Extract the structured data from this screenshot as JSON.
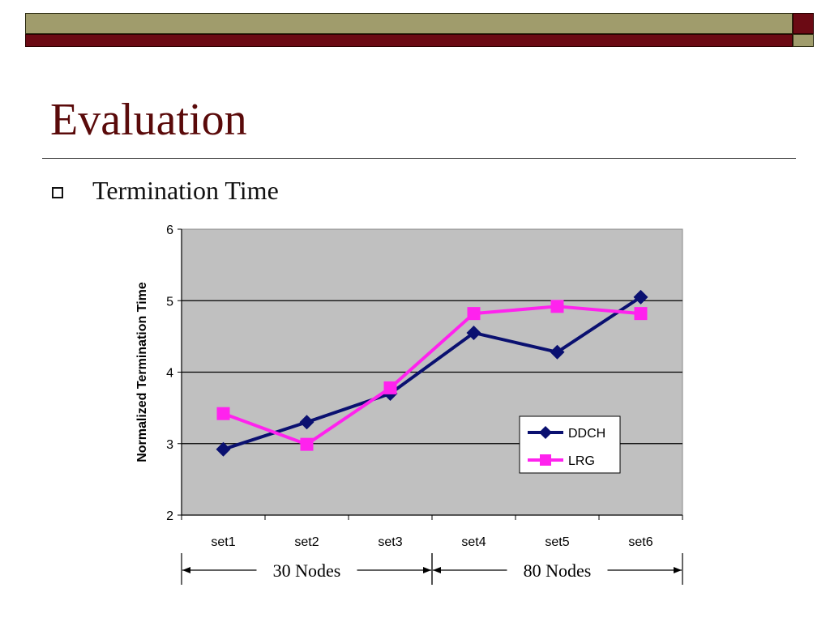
{
  "slide": {
    "title": "Evaluation",
    "bullet": "Termination Time",
    "bullet_icon": "hollow-square-icon",
    "colors": {
      "title": "#5a0a0a",
      "bar_olive": "#a09c6c",
      "bar_red": "#6b0a14"
    }
  },
  "chart_data": {
    "type": "line",
    "title": "",
    "xlabel": "",
    "ylabel": "Normalized Termination Time",
    "categories": [
      "set1",
      "set2",
      "set3",
      "set4",
      "set5",
      "set6"
    ],
    "ylim": [
      2,
      6
    ],
    "yticks": [
      "2",
      "3",
      "4",
      "5",
      "6"
    ],
    "grid": true,
    "plot_background": "#c0c0c0",
    "legend_position": "lower-right",
    "series": [
      {
        "name": "DDCH",
        "values": [
          2.92,
          3.3,
          3.7,
          4.55,
          4.28,
          5.05
        ],
        "color": "#0a1070",
        "marker": "diamond"
      },
      {
        "name": "LRG",
        "values": [
          3.42,
          2.99,
          3.78,
          4.82,
          4.92,
          4.82
        ],
        "color": "#ff22ee",
        "marker": "square"
      }
    ],
    "groups": [
      {
        "label": "30 Nodes",
        "from": "set1",
        "to": "set3"
      },
      {
        "label": "80 Nodes",
        "from": "set4",
        "to": "set6"
      }
    ]
  }
}
